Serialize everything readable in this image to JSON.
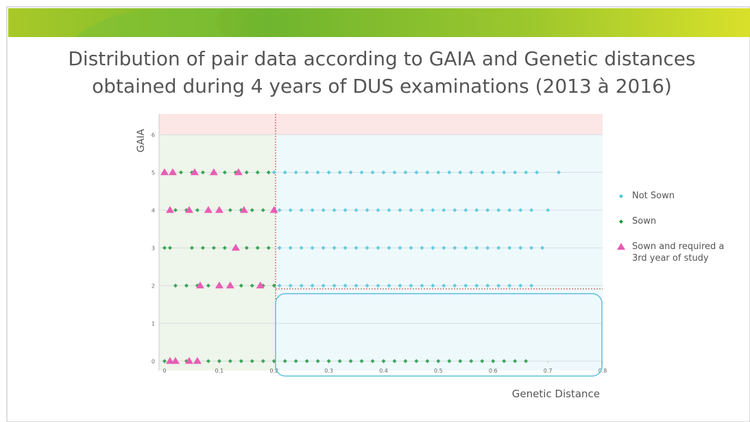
{
  "chart_data": {
    "type": "scatter",
    "title": "Distribution of pair data according to GAIA and Genetic distances obtained during 4 years of DUS examinations (2013 à 2016)",
    "x_label": "Genetic Distance",
    "y_label": "GAIA",
    "xlim": [
      -0.01,
      0.8
    ],
    "ylim": [
      -0.25,
      6.55
    ],
    "xticks": [
      0,
      0.1,
      0.2,
      0.3,
      0.4,
      0.5,
      0.6,
      0.7,
      0.8
    ],
    "yticks": [
      0,
      1,
      2,
      3,
      4,
      5,
      6
    ],
    "grid": true,
    "legend": "right",
    "series": [
      {
        "name": "Not Sown",
        "color": "#4cc6dc",
        "marker": "diamond",
        "x": [
          0.2,
          0.22,
          0.24,
          0.26,
          0.28,
          0.3,
          0.32,
          0.34,
          0.36,
          0.38,
          0.4,
          0.42,
          0.44,
          0.46,
          0.48,
          0.5,
          0.52,
          0.54,
          0.56,
          0.58,
          0.6,
          0.62,
          0.64,
          0.66,
          0.68,
          0.72,
          0.21,
          0.23,
          0.25,
          0.27,
          0.29,
          0.31,
          0.33,
          0.35,
          0.37,
          0.39,
          0.41,
          0.43,
          0.45,
          0.47,
          0.49,
          0.51,
          0.53,
          0.55,
          0.57,
          0.59,
          0.61,
          0.63,
          0.65,
          0.67,
          0.7,
          0.21,
          0.23,
          0.25,
          0.27,
          0.29,
          0.31,
          0.33,
          0.35,
          0.37,
          0.39,
          0.41,
          0.43,
          0.45,
          0.47,
          0.49,
          0.51,
          0.53,
          0.55,
          0.57,
          0.59,
          0.61,
          0.63,
          0.65,
          0.67,
          0.69,
          0.21,
          0.23,
          0.25,
          0.27,
          0.29,
          0.31,
          0.33,
          0.35,
          0.37,
          0.39,
          0.41,
          0.43,
          0.45,
          0.47,
          0.49,
          0.51,
          0.53,
          0.55,
          0.57,
          0.59,
          0.61,
          0.63,
          0.65,
          0.67
        ],
        "values": [
          5,
          5,
          5,
          5,
          5,
          5,
          5,
          5,
          5,
          5,
          5,
          5,
          5,
          5,
          5,
          5,
          5,
          5,
          5,
          5,
          5,
          5,
          5,
          5,
          5,
          5,
          4,
          4,
          4,
          4,
          4,
          4,
          4,
          4,
          4,
          4,
          4,
          4,
          4,
          4,
          4,
          4,
          4,
          4,
          4,
          4,
          4,
          4,
          4,
          4,
          4,
          3,
          3,
          3,
          3,
          3,
          3,
          3,
          3,
          3,
          3,
          3,
          3,
          3,
          3,
          3,
          3,
          3,
          3,
          3,
          3,
          3,
          3,
          3,
          3,
          3,
          2,
          2,
          2,
          2,
          2,
          2,
          2,
          2,
          2,
          2,
          2,
          2,
          2,
          2,
          2,
          2,
          2,
          2,
          2,
          2,
          2,
          2,
          2,
          2
        ]
      },
      {
        "name": "Sown",
        "color": "#1b9a3f",
        "marker": "diamond",
        "x": [
          0.03,
          0.05,
          0.07,
          0.09,
          0.11,
          0.13,
          0.15,
          0.17,
          0.19,
          0.02,
          0.04,
          0.06,
          0.08,
          0.1,
          0.12,
          0.14,
          0.16,
          0.18,
          0.2,
          0,
          0.01,
          0.05,
          0.07,
          0.09,
          0.11,
          0.13,
          0.15,
          0.17,
          0.19,
          0.02,
          0.04,
          0.06,
          0.08,
          0.1,
          0.12,
          0.14,
          0.16,
          0.18,
          0.2,
          0,
          0.02,
          0.04,
          0.06,
          0.08,
          0.1,
          0.12,
          0.14,
          0.16,
          0.18,
          0.2,
          0.22,
          0.24,
          0.26,
          0.28,
          0.3,
          0.32,
          0.34,
          0.36,
          0.38,
          0.4,
          0.42,
          0.44,
          0.46,
          0.48,
          0.5,
          0.52,
          0.54,
          0.56,
          0.58,
          0.6,
          0.62,
          0.64,
          0.66
        ],
        "values": [
          5,
          5,
          5,
          5,
          5,
          5,
          5,
          5,
          5,
          4,
          4,
          4,
          4,
          4,
          4,
          4,
          4,
          4,
          4,
          3,
          3,
          3,
          3,
          3,
          3,
          3,
          3,
          3,
          3,
          2,
          2,
          2,
          2,
          2,
          2,
          2,
          2,
          2,
          2,
          0,
          0,
          0,
          0,
          0,
          0,
          0,
          0,
          0,
          0,
          0,
          0,
          0,
          0,
          0,
          0,
          0,
          0,
          0,
          0,
          0,
          0,
          0,
          0,
          0,
          0,
          0,
          0,
          0,
          0,
          0,
          0,
          0,
          0
        ]
      },
      {
        "name": "Sown and required a 3rd year of study",
        "color": "#e85db4",
        "marker": "triangle",
        "x": [
          0,
          0.015,
          0.055,
          0.09,
          0.135,
          0.01,
          0.045,
          0.08,
          0.1,
          0.145,
          0.2,
          0.13,
          0.065,
          0.1,
          0.12,
          0.175,
          0.01,
          0.02,
          0.045,
          0.06
        ],
        "values": [
          5,
          5,
          5,
          5,
          5,
          4,
          4,
          4,
          4,
          4,
          4,
          3,
          2,
          2,
          2,
          2,
          0,
          0,
          0,
          0
        ]
      }
    ]
  }
}
